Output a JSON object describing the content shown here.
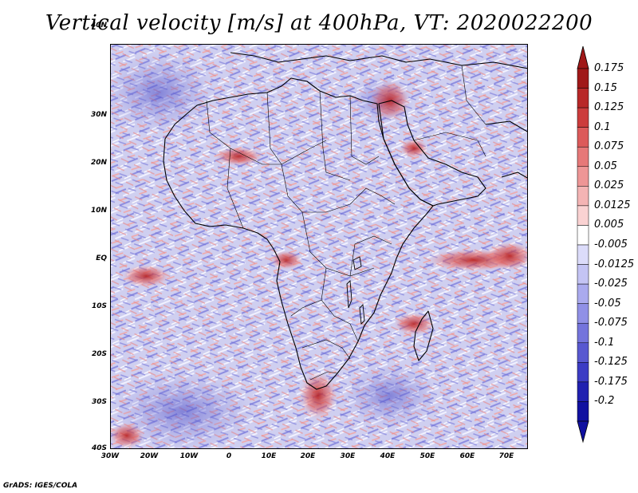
{
  "title": "Vertical velocity [m/s] at 400hPa, VT: 2020022200",
  "map": {
    "lat_labels": [
      "40N",
      "30N",
      "20N",
      "10N",
      "EQ",
      "10S",
      "20S",
      "30S",
      "40S"
    ],
    "lon_labels": [
      "30W",
      "20W",
      "10W",
      "0",
      "10E",
      "20E",
      "30E",
      "40E",
      "50E",
      "60E",
      "70E"
    ],
    "lat_values": [
      40,
      30,
      20,
      10,
      0,
      -10,
      -20,
      -30,
      -40
    ],
    "lon_values": [
      -30,
      -20,
      -10,
      0,
      10,
      20,
      30,
      40,
      50,
      60,
      70
    ],
    "extent": {
      "lon_min": -30,
      "lon_max": 75,
      "lat_min": -40,
      "lat_max": 45
    }
  },
  "colorbar": {
    "labels": [
      "0.175",
      "0.15",
      "0.125",
      "0.1",
      "0.075",
      "0.05",
      "0.025",
      "0.0125",
      "0.005",
      "-0.005",
      "-0.0125",
      "-0.025",
      "-0.05",
      "-0.075",
      "-0.1",
      "-0.125",
      "-0.175",
      "-0.2"
    ],
    "colors": [
      "#a01818",
      "#b82828",
      "#cc3c3c",
      "#dc5a5a",
      "#e67878",
      "#ee9696",
      "#f4b4b4",
      "#fad2d2",
      "#ffffff",
      "#dcdcfa",
      "#c4c4f4",
      "#aaaaee",
      "#9090e6",
      "#7474dc",
      "#5858d0",
      "#3c3cc4",
      "#2020b0",
      "#1010a0"
    ],
    "top_arrow_color": "#a01818",
    "bottom_arrow_color": "#1010a0"
  },
  "credit": "GrADS: IGES/COLA"
}
